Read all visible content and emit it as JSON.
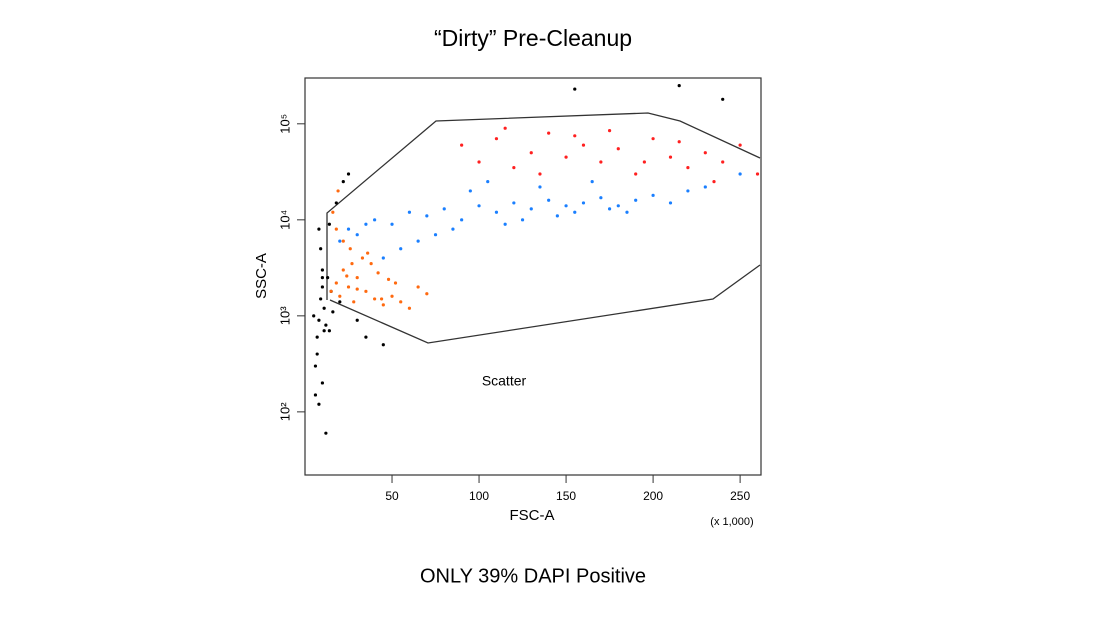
{
  "chart_data": {
    "type": "scatter",
    "title": "“Dirty” Pre-Cleanup",
    "caption": "ONLY 39% DAPI Positive",
    "x_label": "FSC-A",
    "y_label": "SSC-A",
    "x_multiplier": "(x 1,000)",
    "annotation": "Scatter",
    "xlim": [
      0,
      262
    ],
    "xticks": [
      50,
      100,
      150,
      200,
      250
    ],
    "ylim": [
      22,
      300000
    ],
    "yscale": "log",
    "yticks": [
      {
        "value": 100,
        "label": "10²"
      },
      {
        "value": 1000,
        "label": "10³"
      },
      {
        "value": 10000,
        "label": "10⁴"
      },
      {
        "value": 100000,
        "label": "10⁵"
      }
    ],
    "series": [
      {
        "color": "#000000",
        "x": [
          6,
          7,
          8,
          9,
          10,
          11,
          12,
          6,
          8,
          10,
          13,
          15,
          9,
          7,
          11,
          14,
          18,
          22,
          25,
          12,
          16,
          20,
          30,
          35,
          8,
          10,
          14,
          5,
          45,
          10,
          155,
          215,
          240
        ],
        "values": [
          300,
          600,
          900,
          1500,
          2000,
          1200,
          800,
          150,
          120,
          3000,
          2500,
          1800,
          5000,
          400,
          700,
          9000,
          15000,
          25000,
          30000,
          60,
          1100,
          1400,
          900,
          600,
          8000,
          200,
          700,
          1000,
          500,
          2500,
          230000,
          250000,
          180000
        ]
      },
      {
        "color": "#ff6a10",
        "x": [
          15,
          18,
          20,
          22,
          25,
          28,
          30,
          35,
          40,
          45,
          50,
          55,
          60,
          18,
          22,
          26,
          33,
          38,
          42,
          48,
          16,
          19,
          24,
          30,
          52,
          65,
          70,
          27,
          36,
          44
        ],
        "values": [
          1800,
          2200,
          1600,
          3000,
          2000,
          1400,
          2500,
          1800,
          1500,
          1300,
          1600,
          1400,
          1200,
          8000,
          6000,
          5000,
          4000,
          3500,
          2800,
          2400,
          12000,
          20000,
          2600,
          1900,
          2200,
          2000,
          1700,
          3500,
          4500,
          1500
        ]
      },
      {
        "color": "#1a7fff",
        "x": [
          20,
          25,
          30,
          35,
          40,
          50,
          60,
          70,
          80,
          90,
          100,
          110,
          120,
          130,
          140,
          150,
          160,
          170,
          180,
          190,
          200,
          210,
          220,
          230,
          45,
          55,
          65,
          75,
          85,
          95,
          105,
          115,
          125,
          135,
          145,
          155,
          165,
          175,
          185,
          250
        ],
        "values": [
          6000,
          8000,
          7000,
          9000,
          10000,
          9000,
          12000,
          11000,
          13000,
          10000,
          14000,
          12000,
          15000,
          13000,
          16000,
          14000,
          15000,
          17000,
          14000,
          16000,
          18000,
          15000,
          20000,
          22000,
          4000,
          5000,
          6000,
          7000,
          8000,
          20000,
          25000,
          9000,
          10000,
          22000,
          11000,
          12000,
          25000,
          13000,
          12000,
          30000
        ]
      },
      {
        "color": "#ff2020",
        "x": [
          90,
          100,
          110,
          120,
          130,
          140,
          150,
          160,
          170,
          180,
          190,
          200,
          210,
          220,
          230,
          240,
          250,
          260,
          115,
          135,
          155,
          175,
          195,
          215,
          235
        ],
        "values": [
          60000,
          40000,
          70000,
          35000,
          50000,
          80000,
          45000,
          60000,
          40000,
          55000,
          30000,
          70000,
          45000,
          35000,
          50000,
          40000,
          60000,
          30000,
          90000,
          30000,
          75000,
          85000,
          40000,
          65000,
          25000
        ]
      }
    ]
  }
}
